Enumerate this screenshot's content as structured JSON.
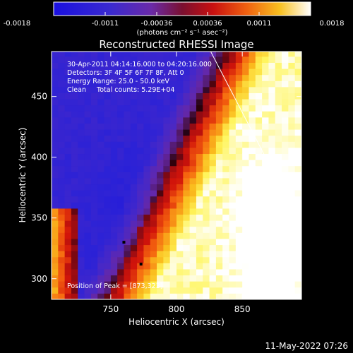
{
  "figure": {
    "colorbar": {
      "ticks": [
        "-0.0018",
        "-0.0011",
        "-0.00036",
        "0.00036",
        "0.0011",
        "0.0018"
      ],
      "units": "(photons cm⁻² s⁻¹ asec⁻²)",
      "range": [
        -0.0018,
        0.0018
      ]
    },
    "title": "Reconstructed RHESSI Image",
    "annotations": [
      "30-Apr-2011 04:14:16.000 to 04:20:16.000",
      "Detectors: 3F 4F 5F 6F 7F 8F, Att 0",
      "Energy Range: 25.0 - 50.0 keV",
      "Clean     Total counts: 5.29E+04"
    ],
    "peak_label": "Position of Peak = [873,323]",
    "timestamp": "11-May-2022 07:26"
  },
  "chart_data": {
    "type": "heatmap",
    "title": "Reconstructed RHESSI Image",
    "xlabel": "Heliocentric X (arcsec)",
    "ylabel": "Heliocentric Y (arcsec)",
    "xlim": [
      705,
      895
    ],
    "ylim": [
      283,
      487
    ],
    "xticks": [
      750,
      800,
      850
    ],
    "yticks": [
      300,
      350,
      400,
      450
    ],
    "colorbar_range": [
      -0.0018,
      0.0018
    ],
    "colormap": "rainbow-like: blue → purple → red → orange → yellow → white",
    "peak": [
      873,
      323
    ],
    "limb_line": [
      [
        826,
        487
      ],
      [
        895,
        343
      ]
    ],
    "dots": [
      [
        760,
        330
      ],
      [
        773,
        312
      ]
    ]
  }
}
